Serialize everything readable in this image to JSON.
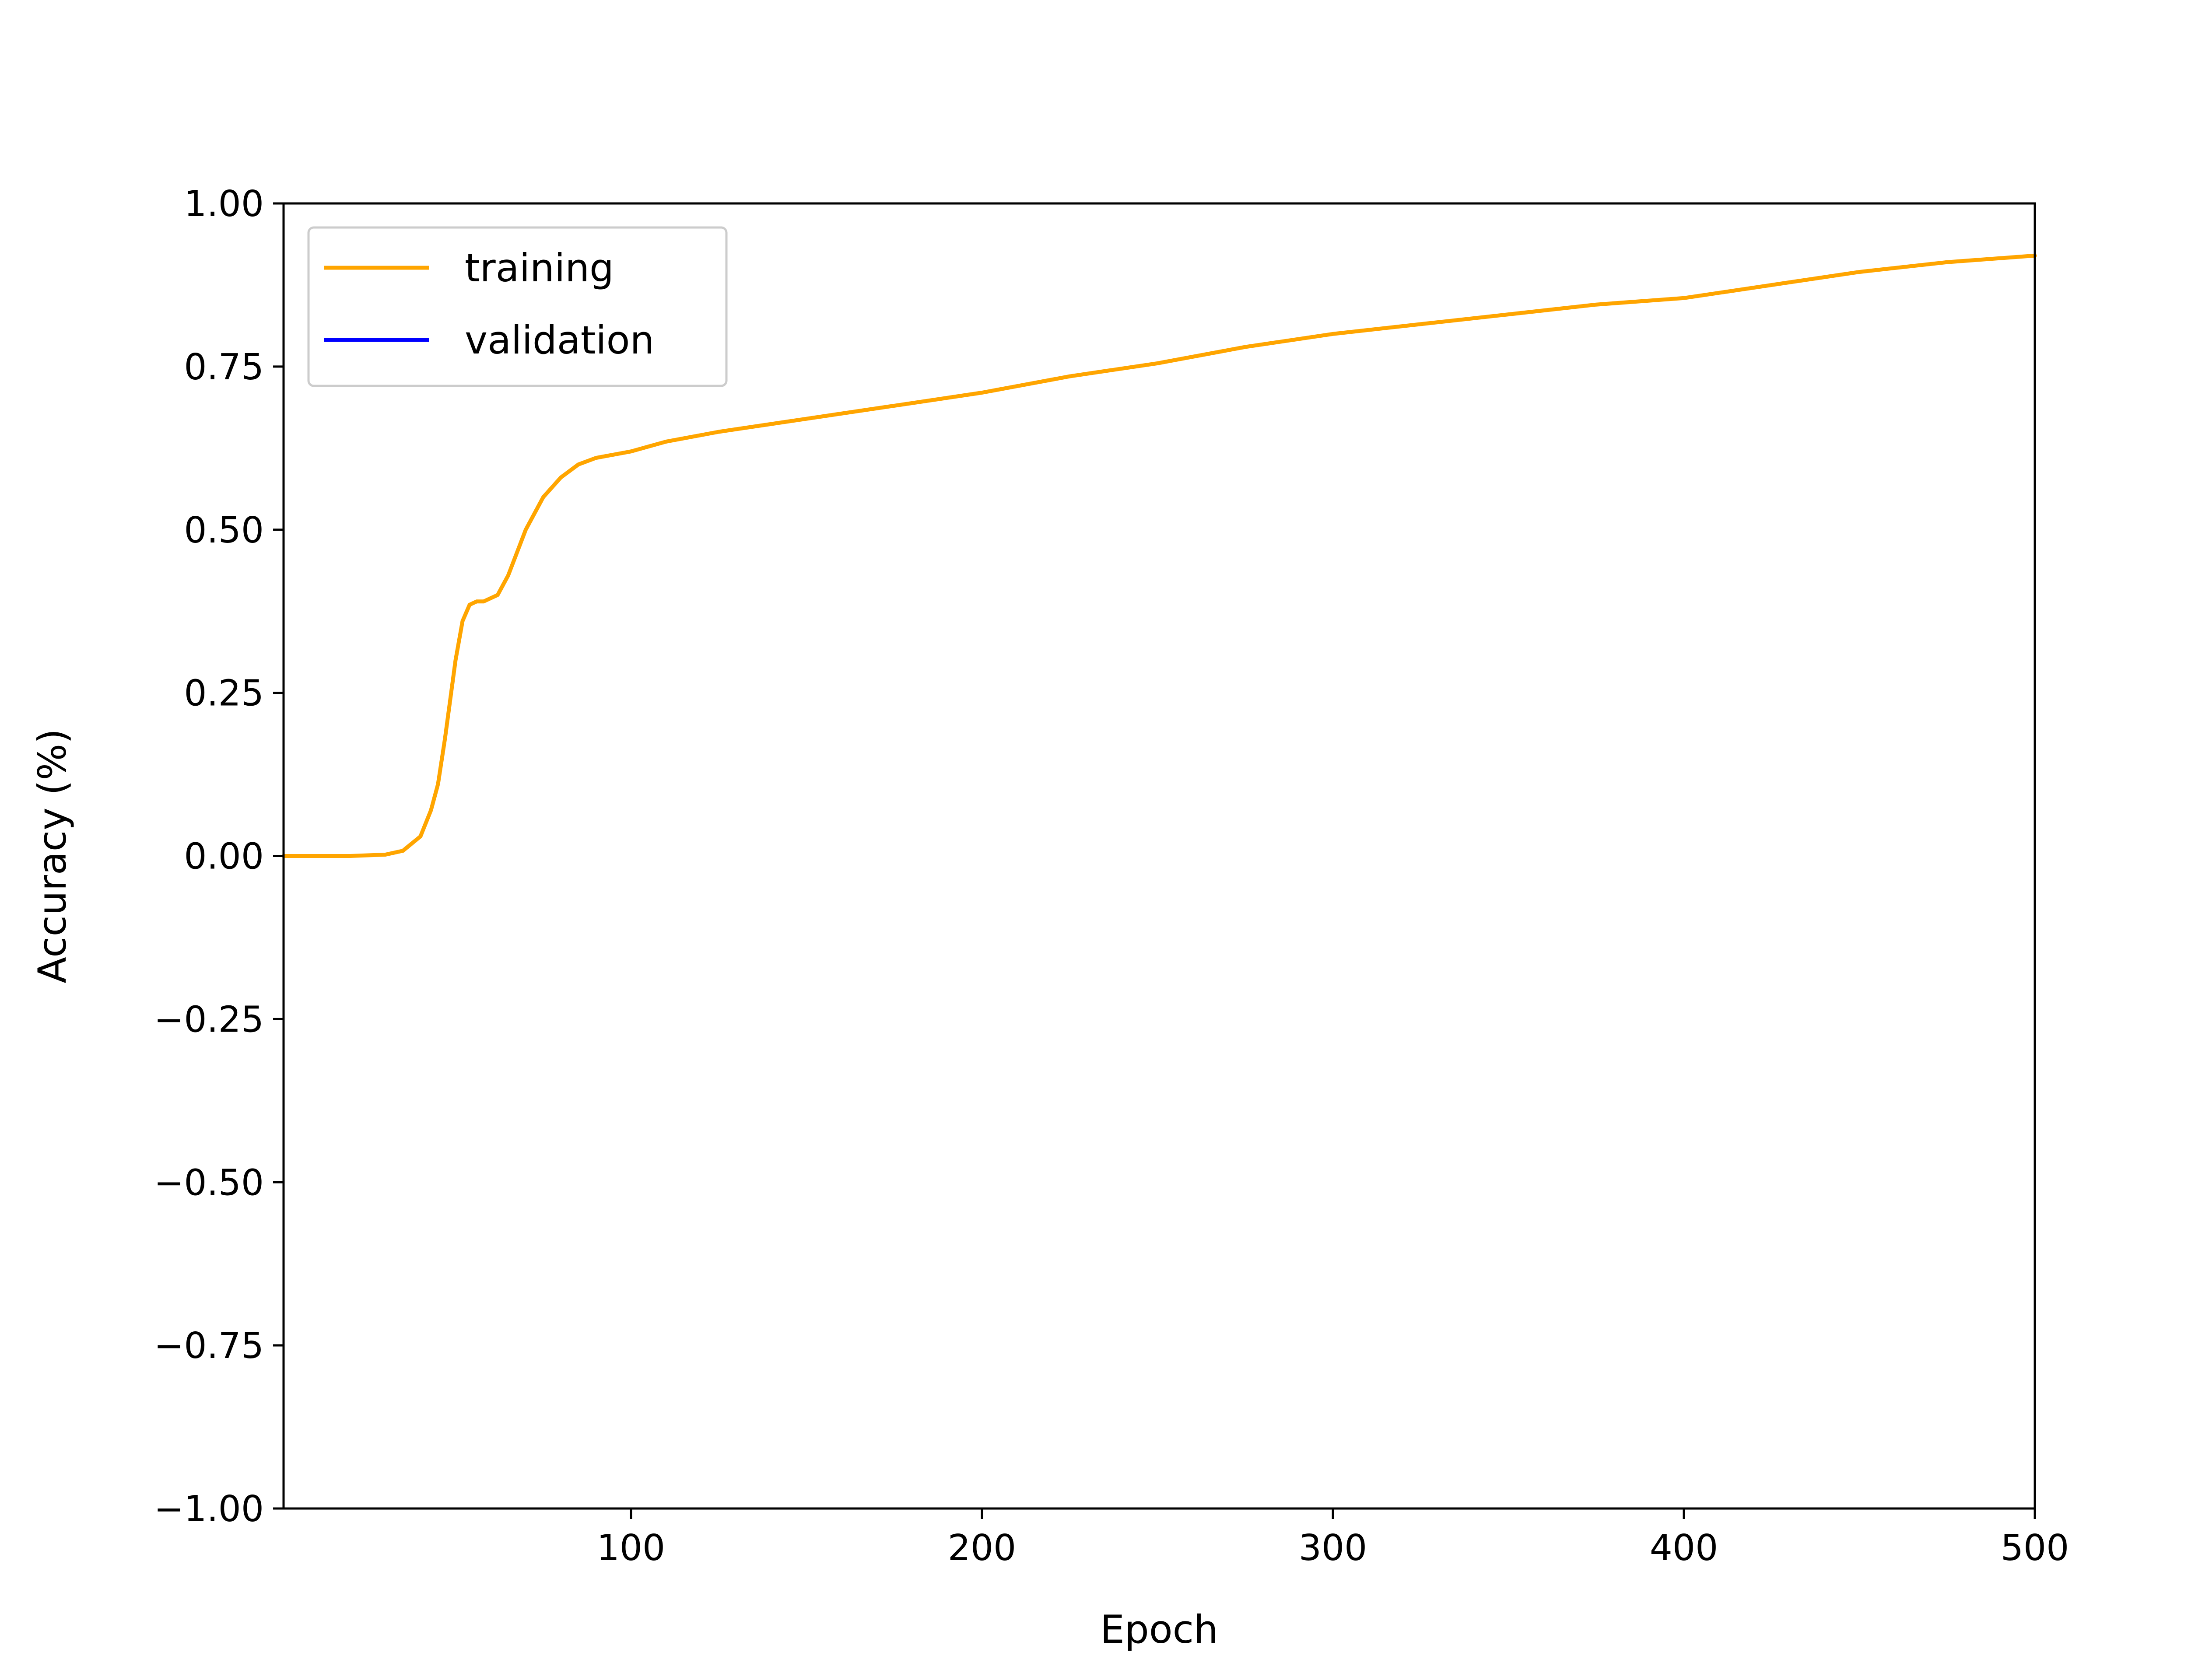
{
  "chart_data": {
    "type": "line",
    "title": "",
    "xlabel": "Epoch",
    "ylabel": "Accuracy (%)",
    "xlim": [
      1,
      500
    ],
    "ylim": [
      -1.0,
      1.0
    ],
    "xticks": [
      100,
      200,
      300,
      400,
      500
    ],
    "xtick_labels": [
      "100",
      "200",
      "300",
      "400",
      "500"
    ],
    "yticks": [
      -1.0,
      -0.75,
      -0.5,
      -0.25,
      0.0,
      0.25,
      0.5,
      0.75,
      1.0
    ],
    "ytick_labels": [
      "−1.00",
      "−0.75",
      "−0.50",
      "−0.25",
      "0.00",
      "0.25",
      "0.50",
      "0.75",
      "1.00"
    ],
    "grid": false,
    "legend_position": "top-left",
    "series": [
      {
        "name": "training",
        "color": "#FFA500",
        "x": [
          1,
          10,
          20,
          30,
          35,
          40,
          43,
          45,
          47,
          50,
          52,
          54,
          56,
          58,
          62,
          65,
          70,
          75,
          80,
          85,
          90,
          100,
          110,
          125,
          150,
          175,
          200,
          225,
          250,
          275,
          300,
          325,
          350,
          375,
          400,
          425,
          450,
          475,
          500
        ],
        "y": [
          0.0,
          0.0,
          0.0,
          0.002,
          0.008,
          0.03,
          0.07,
          0.11,
          0.18,
          0.3,
          0.36,
          0.385,
          0.39,
          0.39,
          0.4,
          0.43,
          0.5,
          0.55,
          0.58,
          0.6,
          0.61,
          0.62,
          0.635,
          0.65,
          0.67,
          0.69,
          0.71,
          0.735,
          0.755,
          0.78,
          0.8,
          0.815,
          0.83,
          0.845,
          0.855,
          0.875,
          0.895,
          0.91,
          0.92
        ]
      },
      {
        "name": "validation",
        "color": "#0000FF",
        "x": [],
        "y": []
      }
    ]
  }
}
